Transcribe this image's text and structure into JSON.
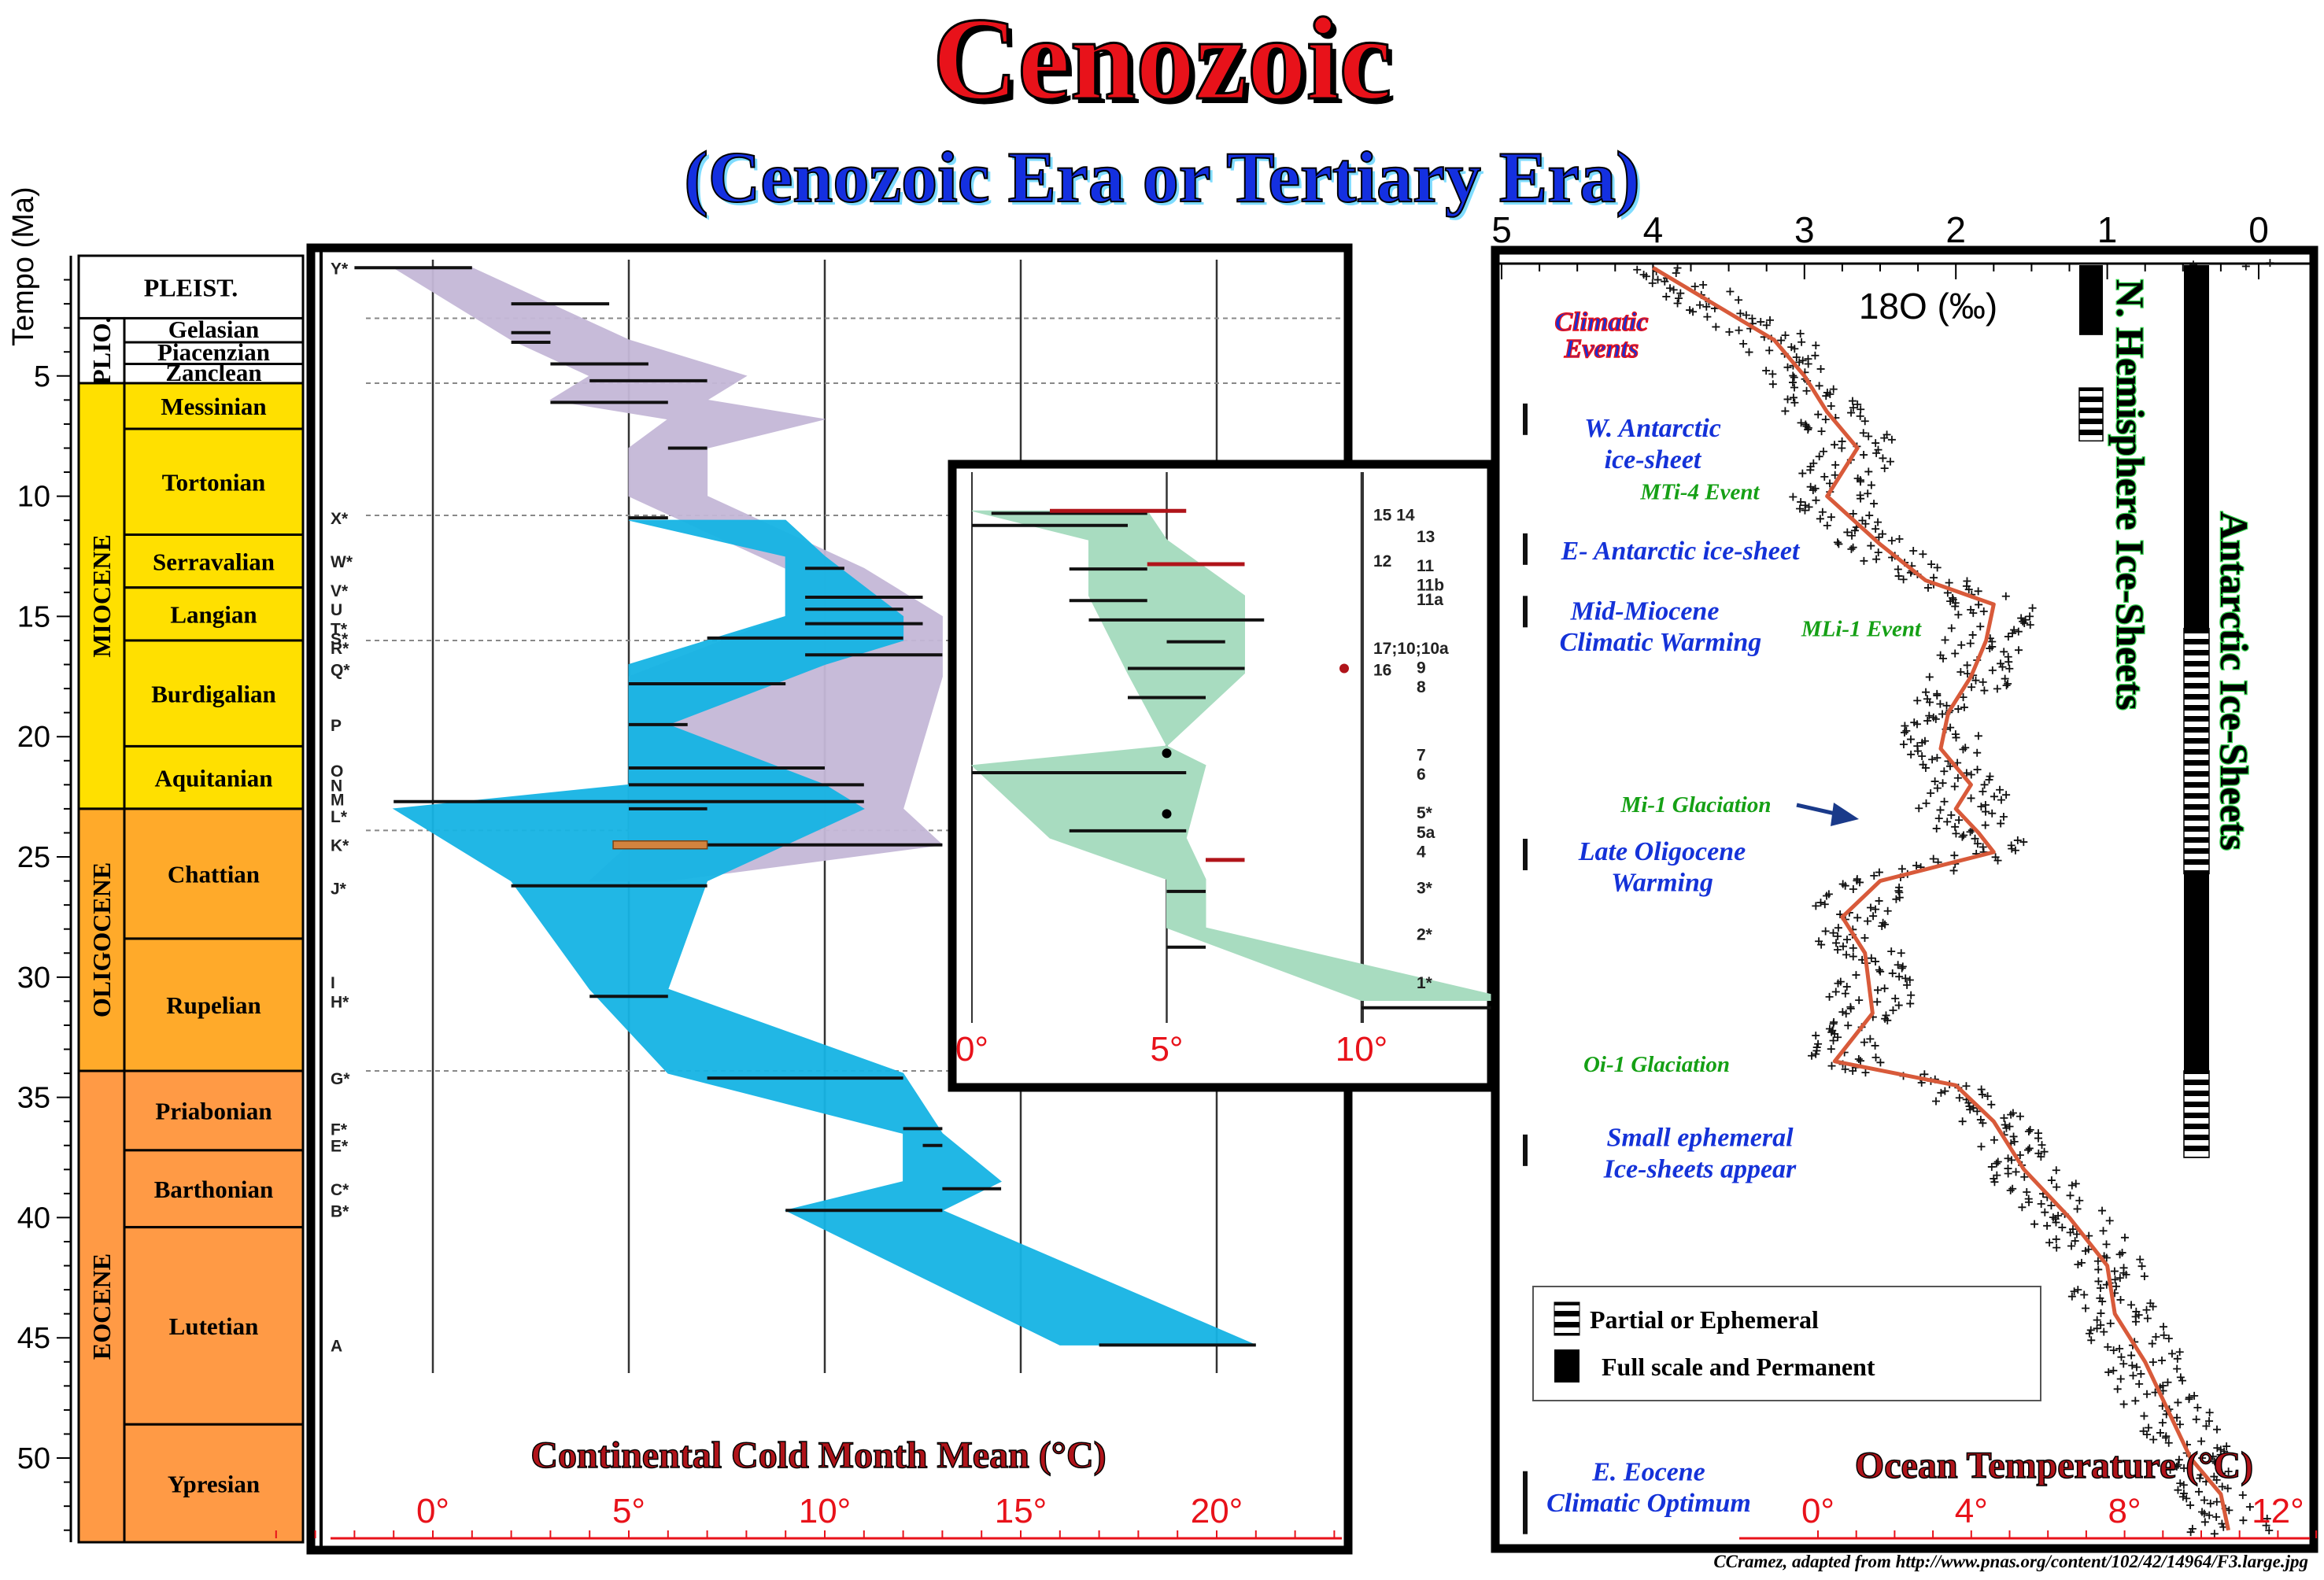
{
  "title": "Cenozoic",
  "subtitle": "(Cenozoic Era or Tertiary Era)",
  "credit": "CCramez, adapted from http://www.pnas.org/content/102/42/14964/F3.large.jpg",
  "time_axis": {
    "label": "Tempo (Ma)",
    "ticks": [
      5,
      10,
      15,
      20,
      25,
      30,
      35,
      40,
      45,
      50
    ]
  },
  "epochs": [
    {
      "name": "PLEIST.",
      "start": 0,
      "end": 2.6
    },
    {
      "name": "PLIO.",
      "start": 2.6,
      "end": 5.3
    },
    {
      "name": "MIOCENE",
      "start": 5.3,
      "end": 23.0
    },
    {
      "name": "OLIGOCENE",
      "start": 23.0,
      "end": 33.9
    },
    {
      "name": "EOCENE",
      "start": 33.9,
      "end": 53.5
    }
  ],
  "stages": [
    {
      "name": "Gelasian",
      "start": 2.6,
      "end": 3.6
    },
    {
      "name": "Piacenzian",
      "start": 3.6,
      "end": 4.5
    },
    {
      "name": "Zanclean",
      "start": 4.5,
      "end": 5.3
    },
    {
      "name": "Messinian",
      "start": 5.3,
      "end": 7.2
    },
    {
      "name": "Tortonian",
      "start": 7.2,
      "end": 11.6
    },
    {
      "name": "Serravalian",
      "start": 11.6,
      "end": 13.8
    },
    {
      "name": "Langian",
      "start": 13.8,
      "end": 16.0
    },
    {
      "name": "Burdigalian",
      "start": 16.0,
      "end": 20.4
    },
    {
      "name": "Aquitanian",
      "start": 20.4,
      "end": 23.0
    },
    {
      "name": "Chattian",
      "start": 23.0,
      "end": 28.4
    },
    {
      "name": "Rupelian",
      "start": 28.4,
      "end": 33.9
    },
    {
      "name": "Priabonian",
      "start": 33.9,
      "end": 37.2
    },
    {
      "name": "Barthonian",
      "start": 37.2,
      "end": 40.4
    },
    {
      "name": "Lutetian",
      "start": 40.4,
      "end": 48.6
    },
    {
      "name": "Ypresian",
      "start": 48.6,
      "end": 53.5
    }
  ],
  "sites_left": [
    {
      "label": "Y*",
      "age": 0.5
    },
    {
      "label": "X*",
      "age": 10.9
    },
    {
      "label": "W*",
      "age": 12.7
    },
    {
      "label": "V*",
      "age": 13.9
    },
    {
      "label": "U",
      "age": 14.7
    },
    {
      "label": "T*",
      "age": 15.5
    },
    {
      "label": "S*",
      "age": 15.9
    },
    {
      "label": "R*",
      "age": 16.3
    },
    {
      "label": "Q*",
      "age": 17.2
    },
    {
      "label": "P",
      "age": 19.5
    },
    {
      "label": "O",
      "age": 21.4
    },
    {
      "label": "N",
      "age": 22.0
    },
    {
      "label": "M",
      "age": 22.6
    },
    {
      "label": "L*",
      "age": 23.3
    },
    {
      "label": "K*",
      "age": 24.5
    },
    {
      "label": "J*",
      "age": 26.3
    },
    {
      "label": "I",
      "age": 30.2
    },
    {
      "label": "H*",
      "age": 31.0
    },
    {
      "label": "G*",
      "age": 34.2
    },
    {
      "label": "F*",
      "age": 36.3
    },
    {
      "label": "E*",
      "age": 37.0
    },
    {
      "label": "C*",
      "age": 38.8
    },
    {
      "label": "B*",
      "age": 39.7
    },
    {
      "label": "A",
      "age": 45.3
    }
  ],
  "chart_data": [
    {
      "type": "area",
      "title": "",
      "xlabel": "Continental Cold Month Mean (°C)",
      "ylabel": "Tempo (Ma)",
      "xlim": [
        -3,
        24
      ],
      "ylim": [
        0,
        53.5
      ],
      "x_ticks": [
        "0°",
        "5°",
        "10°",
        "15°",
        "20°"
      ],
      "series": [
        {
          "name": "",
          "color": "#c5b8d8",
          "envelope": [
            {
              "age": 0.5,
              "min": -1,
              "max": 1
            },
            {
              "age": 3.5,
              "min": 2,
              "max": 5
            },
            {
              "age": 5.0,
              "min": 4,
              "max": 8
            },
            {
              "age": 6.0,
              "min": 3,
              "max": 7
            },
            {
              "age": 6.8,
              "min": 6,
              "max": 10
            },
            {
              "age": 8.0,
              "min": 5,
              "max": 7
            },
            {
              "age": 10.0,
              "min": 5,
              "max": 7
            },
            {
              "age": 13.0,
              "min": 9,
              "max": 11
            },
            {
              "age": 15.0,
              "min": 9,
              "max": 13
            },
            {
              "age": 17.5,
              "min": 5,
              "max": 13
            },
            {
              "age": 23.0,
              "min": 5,
              "max": 12
            },
            {
              "age": 24.5,
              "min": 5,
              "max": 13
            },
            {
              "age": 26.0,
              "min": 4,
              "max": 6
            }
          ]
        },
        {
          "name": "",
          "color": "#16b4e4",
          "envelope": [
            {
              "age": 11.0,
              "min": 5,
              "max": 9
            },
            {
              "age": 12.5,
              "min": 9,
              "max": 10
            },
            {
              "age": 15.0,
              "min": 9,
              "max": 12
            },
            {
              "age": 16.0,
              "min": 7,
              "max": 12
            },
            {
              "age": 17.0,
              "min": 5,
              "max": 10
            },
            {
              "age": 19.5,
              "min": 5,
              "max": 6
            },
            {
              "age": 22.0,
              "min": 5,
              "max": 10
            },
            {
              "age": 23.0,
              "min": -1,
              "max": 11
            },
            {
              "age": 26.0,
              "min": 2,
              "max": 7
            },
            {
              "age": 30.5,
              "min": 4,
              "max": 6
            },
            {
              "age": 34.0,
              "min": 6,
              "max": 12
            },
            {
              "age": 36.5,
              "min": 12,
              "max": 13
            },
            {
              "age": 38.5,
              "min": 12,
              "max": 14.5
            },
            {
              "age": 39.7,
              "min": 9,
              "max": 13
            },
            {
              "age": 45.3,
              "min": 16,
              "max": 21
            }
          ]
        }
      ],
      "horizontal_bars": [
        {
          "age": 0.5,
          "min": -2,
          "max": 1
        },
        {
          "age": 2.0,
          "min": 2,
          "max": 4.5
        },
        {
          "age": 3.2,
          "min": 2,
          "max": 3
        },
        {
          "age": 3.6,
          "min": 2,
          "max": 3
        },
        {
          "age": 4.5,
          "min": 3,
          "max": 5.5
        },
        {
          "age": 5.2,
          "min": 4,
          "max": 7
        },
        {
          "age": 6.1,
          "min": 3,
          "max": 6
        },
        {
          "age": 8.0,
          "min": 6,
          "max": 7
        },
        {
          "age": 10.9,
          "min": 5,
          "max": 6
        },
        {
          "age": 13.0,
          "min": 9.5,
          "max": 10.5
        },
        {
          "age": 14.2,
          "min": 9.5,
          "max": 12.5
        },
        {
          "age": 14.7,
          "min": 9.5,
          "max": 12
        },
        {
          "age": 15.3,
          "min": 9.5,
          "max": 12.5
        },
        {
          "age": 15.9,
          "min": 7,
          "max": 12
        },
        {
          "age": 16.6,
          "min": 9.5,
          "max": 13
        },
        {
          "age": 17.8,
          "min": 5,
          "max": 9
        },
        {
          "age": 19.5,
          "min": 5,
          "max": 6.5
        },
        {
          "age": 21.3,
          "min": 5,
          "max": 10
        },
        {
          "age": 22.0,
          "min": 5,
          "max": 11
        },
        {
          "age": 22.7,
          "min": -1,
          "max": 11
        },
        {
          "age": 23.0,
          "min": 5,
          "max": 7
        },
        {
          "age": 24.5,
          "min": 5,
          "max": 13
        },
        {
          "age": 26.2,
          "min": 2,
          "max": 7
        },
        {
          "age": 30.8,
          "min": 4,
          "max": 6
        },
        {
          "age": 34.2,
          "min": 7,
          "max": 12
        },
        {
          "age": 36.3,
          "min": 12,
          "max": 13
        },
        {
          "age": 37.0,
          "min": 12.5,
          "max": 13
        },
        {
          "age": 38.8,
          "min": 13,
          "max": 14.5
        },
        {
          "age": 39.7,
          "min": 9,
          "max": 13
        },
        {
          "age": 45.3,
          "min": 17,
          "max": 21
        }
      ]
    },
    {
      "type": "area",
      "title": "",
      "xlabel": "",
      "x_ticks": [
        "0°",
        "5°",
        "10°"
      ],
      "xlim": [
        -0.5,
        13.5
      ],
      "ylim": [
        10.5,
        33.9
      ],
      "series": [
        {
          "name": "",
          "color": "#a8dcc0",
          "envelope": [
            {
              "age": 10.8,
              "min": 0,
              "max": 4.5
            },
            {
              "age": 12.0,
              "min": 3,
              "max": 5
            },
            {
              "age": 14.3,
              "min": 3,
              "max": 7
            },
            {
              "age": 17.5,
              "min": 4,
              "max": 7
            },
            {
              "age": 20.5,
              "min": 5,
              "max": 5
            },
            {
              "age": 21.3,
              "min": 0,
              "max": 6
            },
            {
              "age": 24.3,
              "min": 2,
              "max": 5.5
            },
            {
              "age": 26.0,
              "min": 5,
              "max": 6
            },
            {
              "age": 28.0,
              "min": 5,
              "max": 6
            },
            {
              "age": 31.0,
              "min": 10,
              "max": 14
            }
          ]
        }
      ],
      "horizontal_bars": [
        {
          "age": 10.9,
          "min": 0.5,
          "max": 4.5
        },
        {
          "age": 11.4,
          "min": 0,
          "max": 4
        },
        {
          "age": 13.2,
          "min": 2.5,
          "max": 4.5
        },
        {
          "age": 14.5,
          "min": 2.5,
          "max": 4.5
        },
        {
          "age": 15.3,
          "min": 3,
          "max": 7.5
        },
        {
          "age": 16.2,
          "min": 5,
          "max": 6.5
        },
        {
          "age": 17.3,
          "min": 4,
          "max": 7
        },
        {
          "age": 18.5,
          "min": 4,
          "max": 6
        },
        {
          "age": 21.6,
          "min": 0,
          "max": 5.5
        },
        {
          "age": 24.0,
          "min": 2.5,
          "max": 5.5
        },
        {
          "age": 26.5,
          "min": 5,
          "max": 6
        },
        {
          "age": 28.8,
          "min": 5,
          "max": 6
        },
        {
          "age": 31.3,
          "min": 10,
          "max": 14
        }
      ],
      "red_bars": [
        {
          "age": 10.8,
          "min": 2,
          "max": 5.5
        },
        {
          "age": 13.0,
          "min": 4.5,
          "max": 7
        },
        {
          "age": 25.2,
          "min": 6,
          "max": 7
        }
      ],
      "site_labels": [
        {
          "label": "15 14",
          "age": 10.9
        },
        {
          "label": "13",
          "age": 11.8
        },
        {
          "label": "12",
          "age": 12.8
        },
        {
          "label": "11",
          "age": 13.0
        },
        {
          "label": "11b",
          "age": 13.8
        },
        {
          "label": "11a",
          "age": 14.4
        },
        {
          "label": "17;10;10a",
          "age": 16.4
        },
        {
          "label": "16",
          "age": 17.3
        },
        {
          "label": "9",
          "age": 17.2
        },
        {
          "label": "8",
          "age": 18.0
        },
        {
          "label": "7",
          "age": 20.8
        },
        {
          "label": "6",
          "age": 21.6
        },
        {
          "label": "5*",
          "age": 23.2
        },
        {
          "label": "5a",
          "age": 24.0
        },
        {
          "label": "4",
          "age": 24.8
        },
        {
          "label": "3*",
          "age": 26.3
        },
        {
          "label": "2*",
          "age": 28.2
        },
        {
          "label": "1*",
          "age": 30.2
        }
      ]
    },
    {
      "type": "scatter",
      "title": "",
      "xlabel": "Ocean Temperature (°C)",
      "x2label": "18O (‰)",
      "x_ticks": [
        "0°",
        "4°",
        "8°",
        "12°"
      ],
      "x2_ticks": [
        "5",
        "4",
        "3",
        "2",
        "1",
        "0"
      ],
      "xlim_d18O": [
        5,
        0
      ],
      "ylim": [
        0,
        53.5
      ],
      "series": [
        {
          "name": "",
          "color": "#d85a3a",
          "points": [
            {
              "age": 0.5,
              "d18O": 4.0
            },
            {
              "age": 2.0,
              "d18O": 3.6
            },
            {
              "age": 3.5,
              "d18O": 3.2
            },
            {
              "age": 5.0,
              "d18O": 3.0
            },
            {
              "age": 6.5,
              "d18O": 2.85
            },
            {
              "age": 8.0,
              "d18O": 2.65
            },
            {
              "age": 10.0,
              "d18O": 2.85
            },
            {
              "age": 12.0,
              "d18O": 2.5
            },
            {
              "age": 13.5,
              "d18O": 2.2
            },
            {
              "age": 14.5,
              "d18O": 1.75
            },
            {
              "age": 16.0,
              "d18O": 1.8
            },
            {
              "age": 17.5,
              "d18O": 1.9
            },
            {
              "age": 19.0,
              "d18O": 2.05
            },
            {
              "age": 20.5,
              "d18O": 2.1
            },
            {
              "age": 22.0,
              "d18O": 1.9
            },
            {
              "age": 23.0,
              "d18O": 2.0
            },
            {
              "age": 24.0,
              "d18O": 1.85
            },
            {
              "age": 24.8,
              "d18O": 1.75
            },
            {
              "age": 26.0,
              "d18O": 2.5
            },
            {
              "age": 27.5,
              "d18O": 2.75
            },
            {
              "age": 29.0,
              "d18O": 2.6
            },
            {
              "age": 31.5,
              "d18O": 2.55
            },
            {
              "age": 33.5,
              "d18O": 2.8
            },
            {
              "age": 34.5,
              "d18O": 2.0
            },
            {
              "age": 36.0,
              "d18O": 1.75
            },
            {
              "age": 38.0,
              "d18O": 1.55
            },
            {
              "age": 40.0,
              "d18O": 1.25
            },
            {
              "age": 42.0,
              "d18O": 1.0
            },
            {
              "age": 44.0,
              "d18O": 0.95
            },
            {
              "age": 46.0,
              "d18O": 0.75
            },
            {
              "age": 48.0,
              "d18O": 0.6
            },
            {
              "age": 50.0,
              "d18O": 0.45
            },
            {
              "age": 51.5,
              "d18O": 0.25
            },
            {
              "age": 53.0,
              "d18O": 0.2
            }
          ]
        }
      ],
      "climatic_events_label": "Climatic Events",
      "events": [
        {
          "text": "W. Antarctic",
          "age": 7.2,
          "color": "blue"
        },
        {
          "text": "ice-sheet",
          "age": 8.5,
          "color": "blue"
        },
        {
          "text": "MTi-4 Event",
          "age": 9.8,
          "color": "green"
        },
        {
          "text": "E- Antarctic ice-sheet",
          "age": 12.3,
          "color": "blue"
        },
        {
          "text": "Mid-Miocene",
          "age": 14.8,
          "color": "blue"
        },
        {
          "text": "Climatic Warming",
          "age": 16.1,
          "color": "blue"
        },
        {
          "text": "MLi-1 Event",
          "age": 15.5,
          "color": "green"
        },
        {
          "text": "Mi-1 Glaciation",
          "age": 22.8,
          "color": "green"
        },
        {
          "text": "Late Oligocene",
          "age": 24.8,
          "color": "blue"
        },
        {
          "text": "Warming",
          "age": 26.1,
          "color": "blue"
        },
        {
          "text": "Oi-1 Glaciation",
          "age": 33.6,
          "color": "green"
        },
        {
          "text": "Small ephemeral",
          "age": 36.7,
          "color": "blue"
        },
        {
          "text": "Ice-sheets appear",
          "age": 38.0,
          "color": "blue"
        },
        {
          "text": "E. Eocene",
          "age": 50.6,
          "color": "blue"
        },
        {
          "text": "Climatic Optimum",
          "age": 51.9,
          "color": "blue"
        }
      ],
      "ice_sheets": [
        {
          "name": "N. Hemisphere Ice-Sheets",
          "full": [
            [
              0,
              3.3
            ]
          ],
          "partial": [
            [
              5.5,
              7.7
            ]
          ]
        },
        {
          "name": "Antarctic Ice-Sheets",
          "full": [
            [
              0,
              15.5
            ],
            [
              25.7,
              33.9
            ]
          ],
          "partial": [
            [
              15.5,
              25.7
            ],
            [
              33.9,
              37.5
            ]
          ]
        }
      ],
      "legend": {
        "partial": "Partial or Ephemeral",
        "full": "Full scale and Permanent"
      }
    }
  ]
}
